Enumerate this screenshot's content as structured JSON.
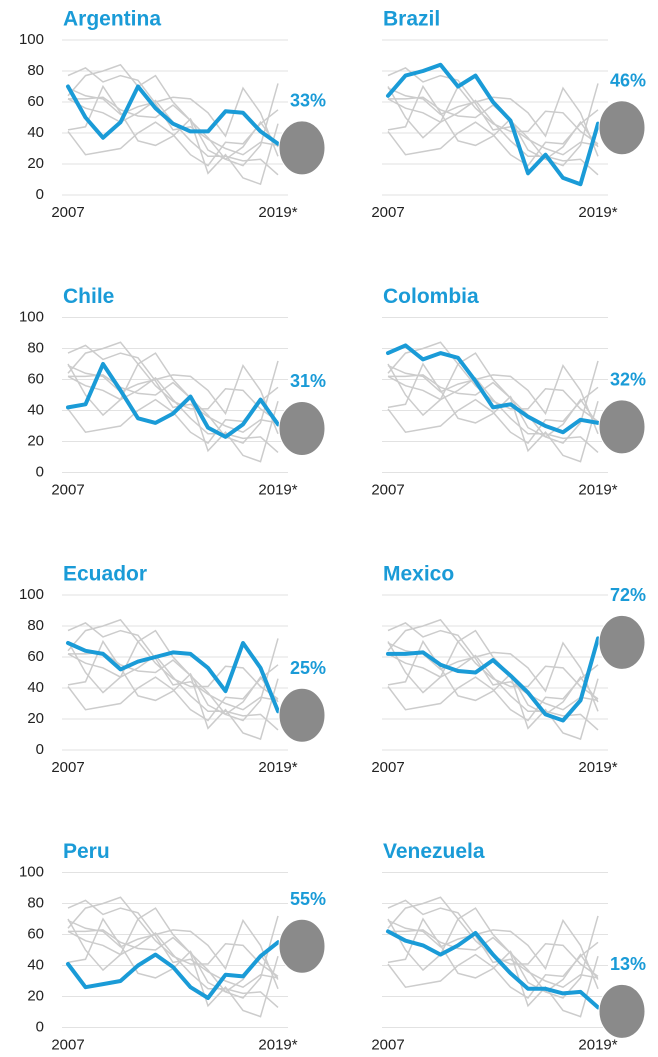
{
  "chart_data": {
    "type": "line",
    "categories": [
      "2007",
      null,
      null,
      null,
      null,
      null,
      null,
      null,
      null,
      null,
      null,
      null,
      "2019*"
    ],
    "ylim": [
      0,
      100
    ],
    "yticks": [
      0,
      20,
      40,
      60,
      80,
      100
    ],
    "grid": true,
    "background_color": "#cccccc",
    "series": [
      {
        "name": "Argentina",
        "color": "#1a9bd7",
        "values": [
          70,
          50,
          37,
          47,
          70,
          56,
          46,
          41,
          41,
          54,
          53,
          41,
          33
        ],
        "value_labels": [
          null,
          null,
          null,
          null,
          null,
          null,
          null,
          null,
          null,
          null,
          null,
          null,
          "33%"
        ]
      },
      {
        "name": "Brazil",
        "color": "#1a9bd7",
        "values": [
          64,
          77,
          80,
          84,
          70,
          77,
          60,
          48,
          14,
          26,
          11,
          7,
          46
        ],
        "value_labels": [
          null,
          null,
          null,
          null,
          null,
          null,
          null,
          null,
          null,
          null,
          null,
          null,
          "46%"
        ]
      },
      {
        "name": "Chile",
        "color": "#1a9bd7",
        "values": [
          42,
          44,
          70,
          53,
          35,
          32,
          38,
          49,
          29,
          23,
          31,
          47,
          31
        ],
        "value_labels": [
          null,
          null,
          null,
          null,
          null,
          null,
          null,
          null,
          null,
          null,
          null,
          null,
          "31%"
        ]
      },
      {
        "name": "Colombia",
        "color": "#1a9bd7",
        "values": [
          77,
          82,
          73,
          77,
          74,
          59,
          42,
          44,
          36,
          30,
          26,
          34,
          32
        ],
        "value_labels": [
          null,
          null,
          null,
          null,
          null,
          null,
          null,
          null,
          null,
          null,
          null,
          null,
          "32%"
        ]
      },
      {
        "name": "Ecuador",
        "color": "#1a9bd7",
        "values": [
          69,
          64,
          62,
          52,
          57,
          60,
          63,
          62,
          53,
          38,
          69,
          53,
          25
        ],
        "value_labels": [
          null,
          null,
          null,
          null,
          null,
          null,
          null,
          null,
          null,
          null,
          null,
          null,
          "25%"
        ]
      },
      {
        "name": "Mexico",
        "color": "#1a9bd7",
        "values": [
          62,
          62,
          63,
          55,
          51,
          50,
          58,
          48,
          37,
          23,
          19,
          32,
          72
        ],
        "value_labels": [
          null,
          null,
          null,
          null,
          null,
          null,
          null,
          null,
          null,
          null,
          null,
          null,
          "72%"
        ]
      },
      {
        "name": "Peru",
        "color": "#1a9bd7",
        "values": [
          41,
          26,
          28,
          30,
          40,
          47,
          39,
          26,
          19,
          34,
          33,
          46,
          55
        ],
        "value_labels": [
          null,
          null,
          null,
          null,
          null,
          null,
          null,
          null,
          null,
          null,
          null,
          null,
          "55%"
        ]
      },
      {
        "name": "Venezuela",
        "color": "#1a9bd7",
        "values": [
          62,
          56,
          53,
          47,
          53,
          61,
          47,
          35,
          25,
          25,
          22,
          23,
          13
        ],
        "value_labels": [
          null,
          null,
          null,
          null,
          null,
          null,
          null,
          null,
          null,
          null,
          null,
          null,
          "13%"
        ]
      }
    ]
  }
}
